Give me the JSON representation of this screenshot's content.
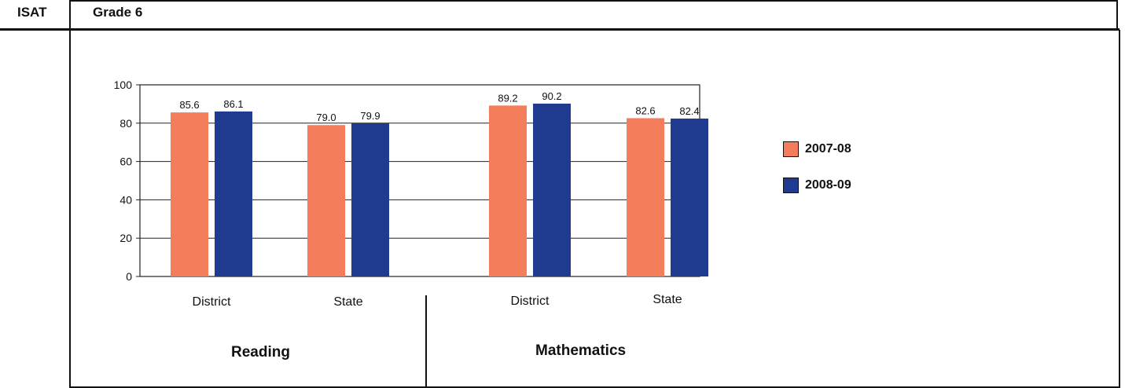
{
  "header": {
    "test": "ISAT",
    "grade": "Grade 6"
  },
  "chart_data": {
    "type": "bar",
    "ylim": [
      0,
      100
    ],
    "yticks": [
      0,
      20,
      40,
      60,
      80,
      100
    ],
    "grid": true,
    "legend_position": "right",
    "categories": [
      "District",
      "State",
      "District",
      "State"
    ],
    "groups": [
      "Reading",
      "Mathematics"
    ],
    "series": [
      {
        "name": "2007-08",
        "color": "#f47e5c",
        "values": [
          85.6,
          79.0,
          89.2,
          82.6
        ],
        "labels": [
          "85.6",
          "79.0",
          "89.2",
          "82.6"
        ]
      },
      {
        "name": "2008-09",
        "color": "#1f3a8f",
        "values": [
          86.1,
          79.9,
          90.2,
          82.4
        ],
        "labels": [
          "86.1",
          "79.9",
          "90.2",
          "82.4"
        ]
      }
    ]
  }
}
